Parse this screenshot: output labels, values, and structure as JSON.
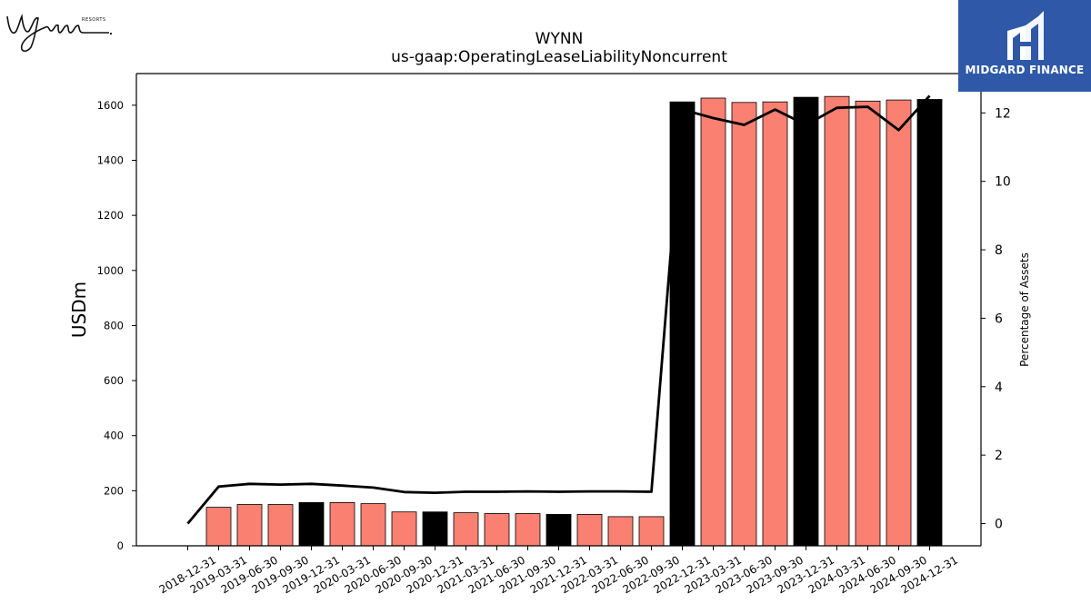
{
  "logos": {
    "left_text": "Wynn",
    "left_subtext": "RESORTS",
    "right_text": "MIDGARD FINANCE"
  },
  "colors": {
    "bar_default": "#fa8072",
    "bar_highlight": "#000000",
    "line": "#000000",
    "brand_blue": "#2f59a8"
  },
  "chart_data": {
    "type": "bar",
    "title": "WYNN",
    "subtitle": "us-gaap:OperatingLeaseLiabilityNoncurrent",
    "ylabel": "USDm",
    "y2label": "Percentage of Assets",
    "ylim": [
      0,
      1715
    ],
    "y2lim": [
      -0.65,
      13.15
    ],
    "yticks": [
      0,
      200,
      400,
      600,
      800,
      1000,
      1200,
      1400,
      1600
    ],
    "y2ticks": [
      0,
      2,
      4,
      6,
      8,
      10,
      12
    ],
    "grid": false,
    "categories": [
      "2018-12-31",
      "2019-03-31",
      "2019-06-30",
      "2019-09-30",
      "2019-12-31",
      "2020-03-31",
      "2020-06-30",
      "2020-09-30",
      "2020-12-31",
      "2021-03-31",
      "2021-06-30",
      "2021-09-30",
      "2021-12-31",
      "2022-03-31",
      "2022-06-30",
      "2022-09-30",
      "2022-12-31",
      "2023-03-31",
      "2023-06-30",
      "2023-09-30",
      "2023-12-31",
      "2024-03-31",
      "2024-06-30",
      "2024-09-30",
      "2024-12-31"
    ],
    "series": [
      {
        "kind": "bar",
        "values": [
          0,
          140,
          150,
          150,
          157,
          157,
          153,
          123,
          123,
          120,
          117,
          117,
          114,
          114,
          106,
          106,
          1612,
          1626,
          1610,
          1612,
          1629,
          1632,
          1615,
          1619,
          1621
        ],
        "highlight": [
          false,
          false,
          false,
          false,
          true,
          false,
          false,
          false,
          true,
          false,
          false,
          false,
          true,
          false,
          false,
          false,
          true,
          false,
          false,
          false,
          true,
          false,
          false,
          false,
          true
        ]
      },
      {
        "kind": "line",
        "axis": "right",
        "values": [
          0.0,
          1.08,
          1.16,
          1.14,
          1.16,
          1.11,
          1.05,
          0.92,
          0.9,
          0.93,
          0.93,
          0.94,
          0.93,
          0.94,
          0.94,
          0.93,
          12.1,
          11.85,
          11.65,
          12.1,
          11.65,
          12.15,
          12.18,
          11.5,
          12.5
        ]
      }
    ]
  }
}
